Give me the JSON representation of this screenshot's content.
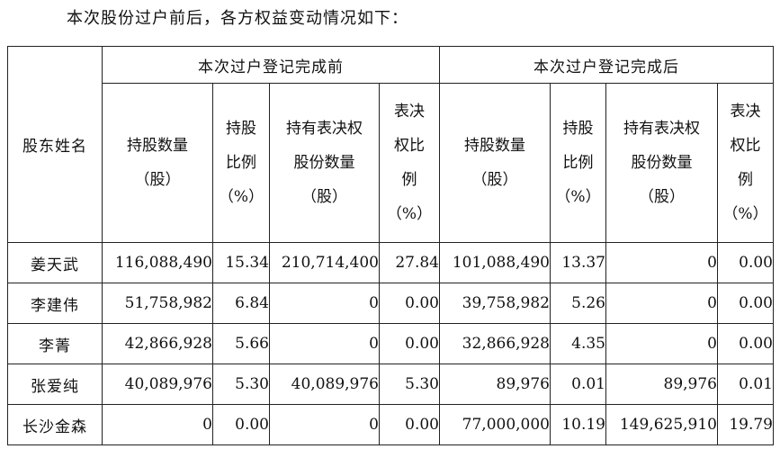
{
  "intro_text": "本次股份过户前后，各方权益变动情况如下：",
  "table": {
    "name_header": "股东姓名",
    "before_header": "本次过户登记完成前",
    "after_header": "本次过户登记完成后",
    "columns": [
      {
        "line1": "持股数量",
        "line2": "（股）",
        "line3": "",
        "line4": ""
      },
      {
        "line1": "持股",
        "line2": "比例",
        "line3": "（%）",
        "line4": ""
      },
      {
        "line1": "持有表决权",
        "line2": "股份数量",
        "line3": "（股）",
        "line4": ""
      },
      {
        "line1": "表决",
        "line2": "权比",
        "line3": "例",
        "line4": "（%）"
      }
    ],
    "rows": [
      {
        "name": "姜天武",
        "before": [
          "116,088,490",
          "15.34",
          "210,714,400",
          "27.84"
        ],
        "after": [
          "101,088,490",
          "13.37",
          "0",
          "0.00"
        ]
      },
      {
        "name": "李建伟",
        "before": [
          "51,758,982",
          "6.84",
          "0",
          "0.00"
        ],
        "after": [
          "39,758,982",
          "5.26",
          "0",
          "0.00"
        ]
      },
      {
        "name": "李菁",
        "before": [
          "42,866,928",
          "5.66",
          "0",
          "0.00"
        ],
        "after": [
          "32,866,928",
          "4.35",
          "0",
          "0.00"
        ]
      },
      {
        "name": "张爱纯",
        "before": [
          "40,089,976",
          "5.30",
          "40,089,976",
          "5.30"
        ],
        "after": [
          "89,976",
          "0.01",
          "89,976",
          "0.01"
        ]
      },
      {
        "name": "长沙金森",
        "before": [
          "0",
          "0.00",
          "0",
          "0.00"
        ],
        "after": [
          "77,000,000",
          "10.19",
          "149,625,910",
          "19.79"
        ]
      }
    ]
  }
}
